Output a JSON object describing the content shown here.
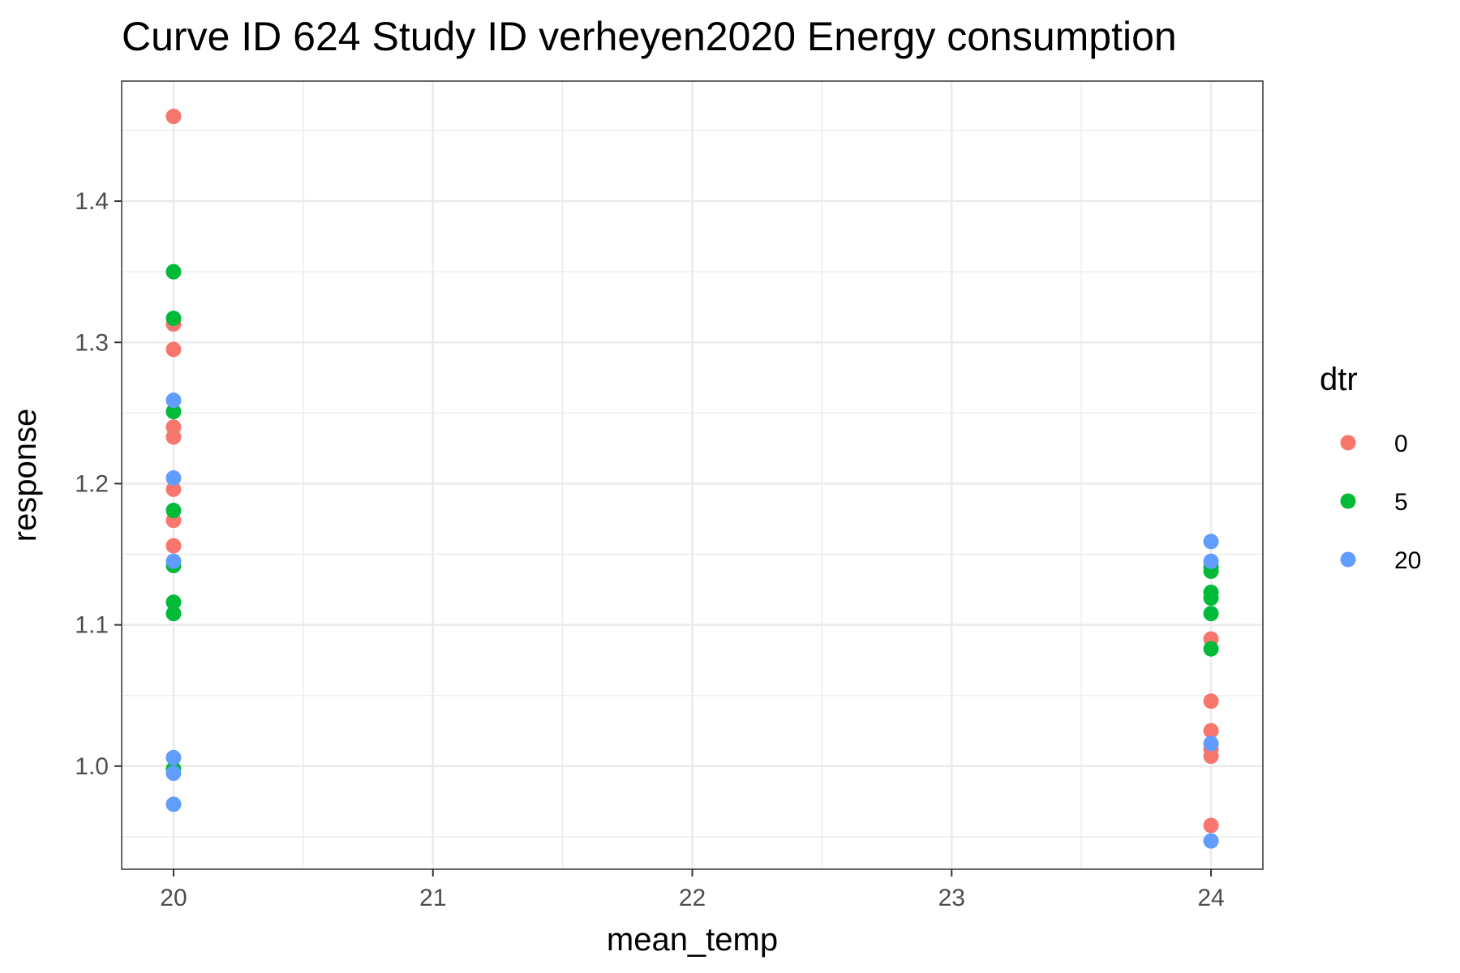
{
  "chart_data": {
    "type": "scatter",
    "title": "Curve ID 624 Study ID verheyen2020 Energy consumption",
    "xlabel": "mean_temp",
    "ylabel": "response",
    "xlim": [
      19.8,
      24.2
    ],
    "ylim": [
      0.927,
      1.485
    ],
    "x_ticks": [
      20,
      21,
      22,
      23,
      24
    ],
    "x_tick_labels": [
      "20",
      "21",
      "22",
      "23",
      "24"
    ],
    "x_minor_ticks": [
      20.5,
      21.5,
      22.5,
      23.5
    ],
    "y_ticks": [
      1.0,
      1.1,
      1.2,
      1.3,
      1.4
    ],
    "y_tick_labels": [
      "1.0",
      "1.1",
      "1.2",
      "1.3",
      "1.4"
    ],
    "y_minor_ticks": [
      0.95,
      1.05,
      1.15,
      1.25,
      1.35,
      1.45
    ],
    "grid": true,
    "legend": {
      "title": "dtr",
      "position": "right"
    },
    "series": [
      {
        "name": "0",
        "color": "#F8766D",
        "points": [
          [
            20,
            1.46
          ],
          [
            20,
            1.313
          ],
          [
            20,
            1.295
          ],
          [
            20,
            1.24
          ],
          [
            20,
            1.233
          ],
          [
            20,
            1.196
          ],
          [
            20,
            1.174
          ],
          [
            20,
            1.156
          ],
          [
            24,
            1.09
          ],
          [
            24,
            1.046
          ],
          [
            24,
            1.025
          ],
          [
            24,
            1.012
          ],
          [
            24,
            1.007
          ],
          [
            24,
            0.958
          ]
        ]
      },
      {
        "name": "5",
        "color": "#00BA38",
        "points": [
          [
            20,
            1.35
          ],
          [
            20,
            1.317
          ],
          [
            20,
            1.251
          ],
          [
            20,
            1.181
          ],
          [
            20,
            1.142
          ],
          [
            20,
            1.116
          ],
          [
            20,
            1.108
          ],
          [
            20,
            0.998
          ],
          [
            24,
            1.141
          ],
          [
            24,
            1.138
          ],
          [
            24,
            1.123
          ],
          [
            24,
            1.119
          ],
          [
            24,
            1.108
          ],
          [
            24,
            1.083
          ]
        ]
      },
      {
        "name": "20",
        "color": "#619CFF",
        "points": [
          [
            20,
            1.259
          ],
          [
            20,
            1.204
          ],
          [
            20,
            1.145
          ],
          [
            20,
            1.006
          ],
          [
            20,
            0.995
          ],
          [
            20,
            0.973
          ],
          [
            24,
            1.159
          ],
          [
            24,
            1.145
          ],
          [
            24,
            1.016
          ],
          [
            24,
            0.947
          ]
        ]
      }
    ]
  }
}
